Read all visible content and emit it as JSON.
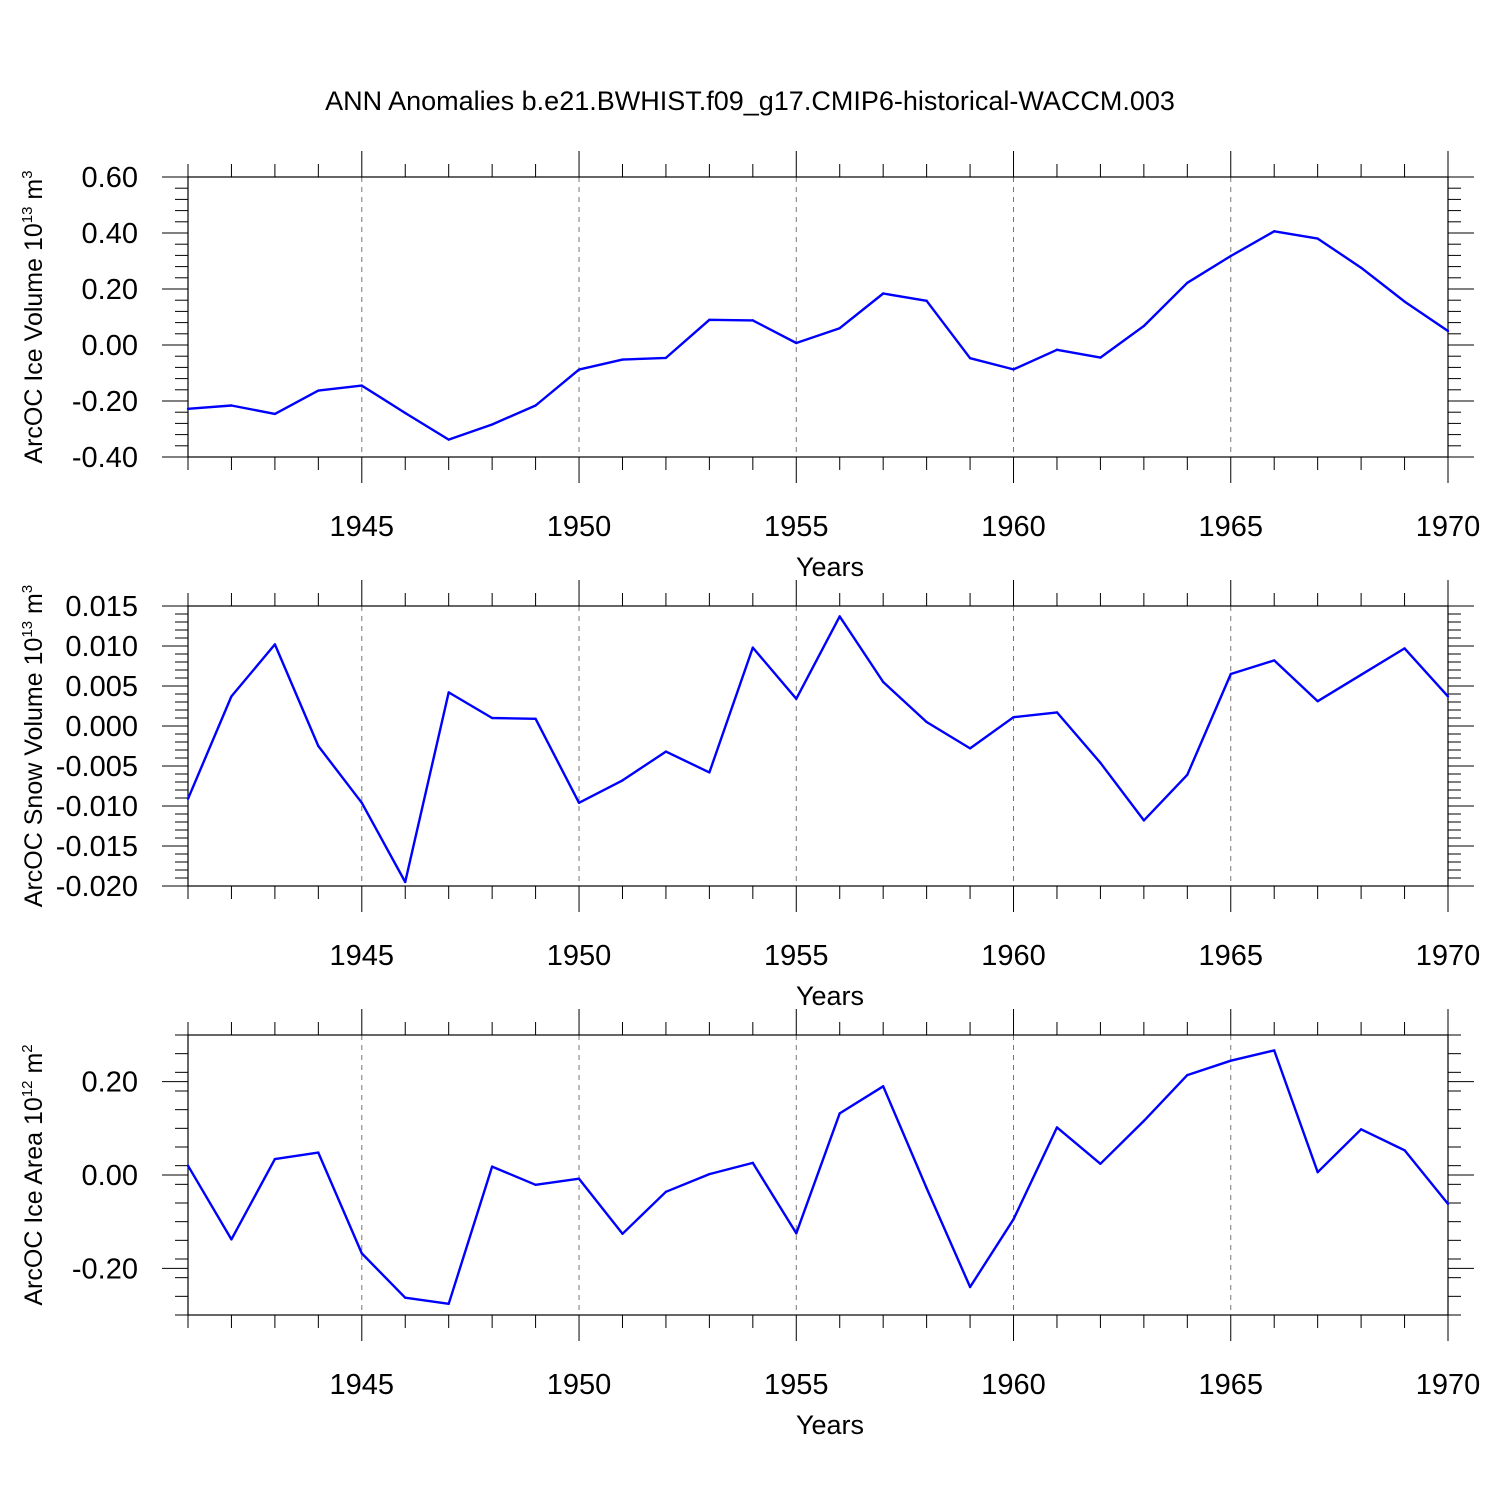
{
  "figure": {
    "title": "ANN Anomalies b.e21.BWHIST.f09_g17.CMIP6-historical-WACCM.003",
    "line_color": "#0000ff"
  },
  "chart_data": [
    {
      "type": "line",
      "title": "",
      "xlabel": "Years",
      "ylabel": "ArcOC Ice Volume 10",
      "ylabel_exp": "13",
      "ylabel_unit": " m",
      "ylabel_unit_exp": "3",
      "xlim": [
        1941,
        1970
      ],
      "ylim": [
        -0.4,
        0.6
      ],
      "grid": true,
      "x_ticks": [
        1945,
        1950,
        1955,
        1960,
        1965,
        1970
      ],
      "x_tick_labels": [
        "1945",
        "1950",
        "1955",
        "1960",
        "1965",
        "1970"
      ],
      "y_ticks": [
        -0.4,
        -0.2,
        0.0,
        0.2,
        0.4,
        0.6
      ],
      "y_tick_labels": [
        "-0.40",
        "-0.20",
        "0.00",
        "0.20",
        "0.40",
        "0.60"
      ],
      "y_minor_step": 0.04,
      "x": [
        1941,
        1942,
        1943,
        1944,
        1945,
        1946,
        1947,
        1948,
        1949,
        1950,
        1951,
        1952,
        1953,
        1954,
        1955,
        1956,
        1957,
        1958,
        1959,
        1960,
        1961,
        1962,
        1963,
        1964,
        1965,
        1966,
        1967,
        1968,
        1969,
        1970
      ],
      "series": [
        {
          "name": "ArcOC Ice Volume",
          "values": [
            -0.228,
            -0.216,
            -0.246,
            -0.163,
            -0.145,
            -0.243,
            -0.338,
            -0.284,
            -0.216,
            -0.088,
            -0.052,
            -0.046,
            0.09,
            0.088,
            0.007,
            0.06,
            0.184,
            0.158,
            -0.047,
            -0.087,
            -0.017,
            -0.045,
            0.068,
            0.222,
            0.318,
            0.406,
            0.38,
            0.276,
            0.155,
            0.05
          ]
        }
      ]
    },
    {
      "type": "line",
      "title": "",
      "xlabel": "Years",
      "ylabel": "ArcOC Snow Volume 10",
      "ylabel_exp": "13",
      "ylabel_unit": " m",
      "ylabel_unit_exp": "3",
      "xlim": [
        1941,
        1970
      ],
      "ylim": [
        -0.02,
        0.015
      ],
      "grid": true,
      "x_ticks": [
        1945,
        1950,
        1955,
        1960,
        1965,
        1970
      ],
      "x_tick_labels": [
        "1945",
        "1950",
        "1955",
        "1960",
        "1965",
        "1970"
      ],
      "y_ticks": [
        -0.02,
        -0.015,
        -0.01,
        -0.005,
        0.0,
        0.005,
        0.01,
        0.015
      ],
      "y_tick_labels": [
        "-0.020",
        "-0.015",
        "-0.010",
        "-0.005",
        "0.000",
        "0.005",
        "0.010",
        "0.015"
      ],
      "y_minor_step": 0.001,
      "x": [
        1941,
        1942,
        1943,
        1944,
        1945,
        1946,
        1947,
        1948,
        1949,
        1950,
        1951,
        1952,
        1953,
        1954,
        1955,
        1956,
        1957,
        1958,
        1959,
        1960,
        1961,
        1962,
        1963,
        1964,
        1965,
        1966,
        1967,
        1968,
        1969,
        1970
      ],
      "series": [
        {
          "name": "ArcOC Snow Volume",
          "values": [
            -0.0091,
            0.0037,
            0.0102,
            -0.0025,
            -0.0096,
            -0.0195,
            0.0042,
            0.001,
            0.0009,
            -0.0096,
            -0.0068,
            -0.0032,
            -0.0058,
            0.0098,
            0.0034,
            0.0137,
            0.0055,
            0.0005,
            -0.0028,
            0.0011,
            0.0017,
            -0.0046,
            -0.0118,
            -0.0061,
            0.0065,
            0.0082,
            0.0031,
            0.0064,
            0.0097,
            0.0037
          ]
        }
      ]
    },
    {
      "type": "line",
      "title": "",
      "xlabel": "Years",
      "ylabel": "ArcOC Ice Area 10",
      "ylabel_exp": "12",
      "ylabel_unit": " m",
      "ylabel_unit_exp": "2",
      "xlim": [
        1941,
        1970
      ],
      "ylim": [
        -0.3,
        0.3
      ],
      "grid": true,
      "x_ticks": [
        1945,
        1950,
        1955,
        1960,
        1965,
        1970
      ],
      "x_tick_labels": [
        "1945",
        "1950",
        "1955",
        "1960",
        "1965",
        "1970"
      ],
      "y_ticks": [
        -0.2,
        0.0,
        0.2
      ],
      "y_tick_labels": [
        "-0.20",
        "0.00",
        "0.20"
      ],
      "y_minor_step": 0.04,
      "x": [
        1941,
        1942,
        1943,
        1944,
        1945,
        1946,
        1947,
        1948,
        1949,
        1950,
        1951,
        1952,
        1953,
        1954,
        1955,
        1956,
        1957,
        1958,
        1959,
        1960,
        1961,
        1962,
        1963,
        1964,
        1965,
        1966,
        1967,
        1968,
        1969,
        1970
      ],
      "series": [
        {
          "name": "ArcOC Ice Area",
          "values": [
            0.02,
            -0.138,
            0.034,
            0.048,
            -0.168,
            -0.263,
            -0.276,
            0.018,
            -0.021,
            -0.008,
            -0.126,
            -0.036,
            0.002,
            0.026,
            -0.125,
            0.132,
            0.19,
            -0.028,
            -0.24,
            -0.095,
            0.102,
            0.024,
            0.116,
            0.214,
            0.245,
            0.267,
            0.006,
            0.098,
            0.053,
            -0.062
          ]
        }
      ]
    }
  ]
}
